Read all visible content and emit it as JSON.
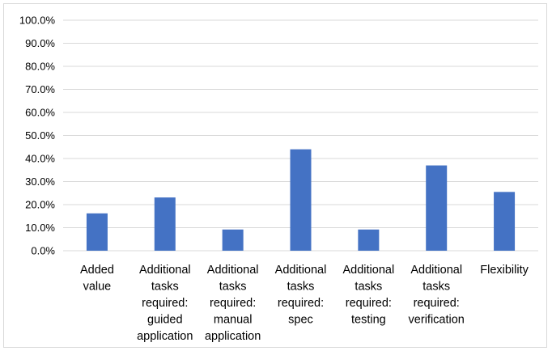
{
  "chart_data": {
    "type": "bar",
    "title": "",
    "xlabel": "",
    "ylabel": "",
    "ylim": [
      0,
      100
    ],
    "y_tick_values": [
      0,
      10,
      20,
      30,
      40,
      50,
      60,
      70,
      80,
      90,
      100
    ],
    "y_tick_labels": [
      "0.0%",
      "10.0%",
      "20.0%",
      "30.0%",
      "40.0%",
      "50.0%",
      "60.0%",
      "70.0%",
      "80.0%",
      "90.0%",
      "100.0%"
    ],
    "categories": [
      [
        "Added",
        "value"
      ],
      [
        "Additional",
        "tasks",
        "required:",
        "guided",
        "application"
      ],
      [
        "Additional",
        "tasks",
        "required:",
        "manual",
        "application"
      ],
      [
        "Additional",
        "tasks",
        "required:",
        "spec"
      ],
      [
        "Additional",
        "tasks",
        "required:",
        "testing"
      ],
      [
        "Additional",
        "tasks",
        "required:",
        "verification"
      ],
      [
        "Flexibility"
      ]
    ],
    "values": [
      16.2,
      23.1,
      9.2,
      44.0,
      9.2,
      37.0,
      25.5
    ],
    "grid": true,
    "legend": "none",
    "bar_color": "#4472c4",
    "grid_color": "#d9d9d9"
  }
}
